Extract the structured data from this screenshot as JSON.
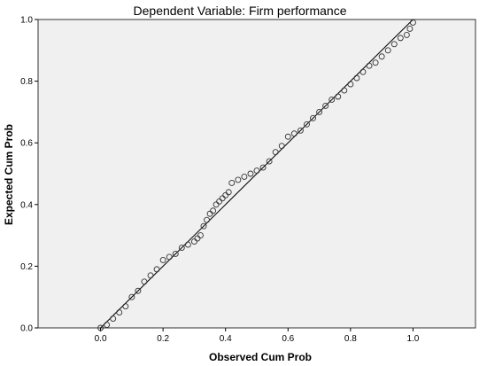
{
  "chart_data": {
    "type": "scatter",
    "title": "Dependent Variable: Firm performance",
    "xlabel": "Observed Cum Prob",
    "ylabel": "Expected Cum Prob",
    "xlim": [
      -0.2,
      1.2
    ],
    "ylim": [
      0.0,
      1.0
    ],
    "x_ticks": [
      "0.0",
      "0.2",
      "0.4",
      "0.6",
      "0.8",
      "1.0"
    ],
    "y_ticks": [
      "0.0",
      "0.2",
      "0.4",
      "0.6",
      "0.8",
      "1.0"
    ],
    "grid": false,
    "reference_line": {
      "from": [
        0,
        0
      ],
      "to": [
        1,
        1
      ]
    },
    "points": {
      "x": [
        0.0,
        0.02,
        0.04,
        0.06,
        0.08,
        0.1,
        0.12,
        0.14,
        0.16,
        0.18,
        0.2,
        0.22,
        0.24,
        0.26,
        0.28,
        0.3,
        0.31,
        0.32,
        0.33,
        0.34,
        0.35,
        0.36,
        0.37,
        0.38,
        0.39,
        0.4,
        0.41,
        0.42,
        0.44,
        0.46,
        0.48,
        0.5,
        0.52,
        0.54,
        0.56,
        0.58,
        0.6,
        0.62,
        0.64,
        0.66,
        0.68,
        0.7,
        0.72,
        0.74,
        0.76,
        0.78,
        0.8,
        0.82,
        0.84,
        0.86,
        0.88,
        0.9,
        0.92,
        0.94,
        0.96,
        0.98,
        0.99,
        1.0
      ],
      "y": [
        0.0,
        0.01,
        0.03,
        0.05,
        0.07,
        0.1,
        0.12,
        0.15,
        0.17,
        0.19,
        0.22,
        0.23,
        0.24,
        0.26,
        0.27,
        0.28,
        0.29,
        0.3,
        0.33,
        0.35,
        0.37,
        0.38,
        0.4,
        0.41,
        0.42,
        0.43,
        0.44,
        0.47,
        0.48,
        0.49,
        0.5,
        0.51,
        0.52,
        0.54,
        0.57,
        0.59,
        0.62,
        0.63,
        0.64,
        0.66,
        0.68,
        0.7,
        0.72,
        0.74,
        0.75,
        0.77,
        0.79,
        0.81,
        0.83,
        0.85,
        0.86,
        0.88,
        0.9,
        0.92,
        0.94,
        0.95,
        0.97,
        0.99
      ]
    },
    "colors": {
      "plot_background": "#f0f0f0",
      "plot_border": "#333333",
      "line": "#000000",
      "marker_stroke": "#333333"
    }
  }
}
